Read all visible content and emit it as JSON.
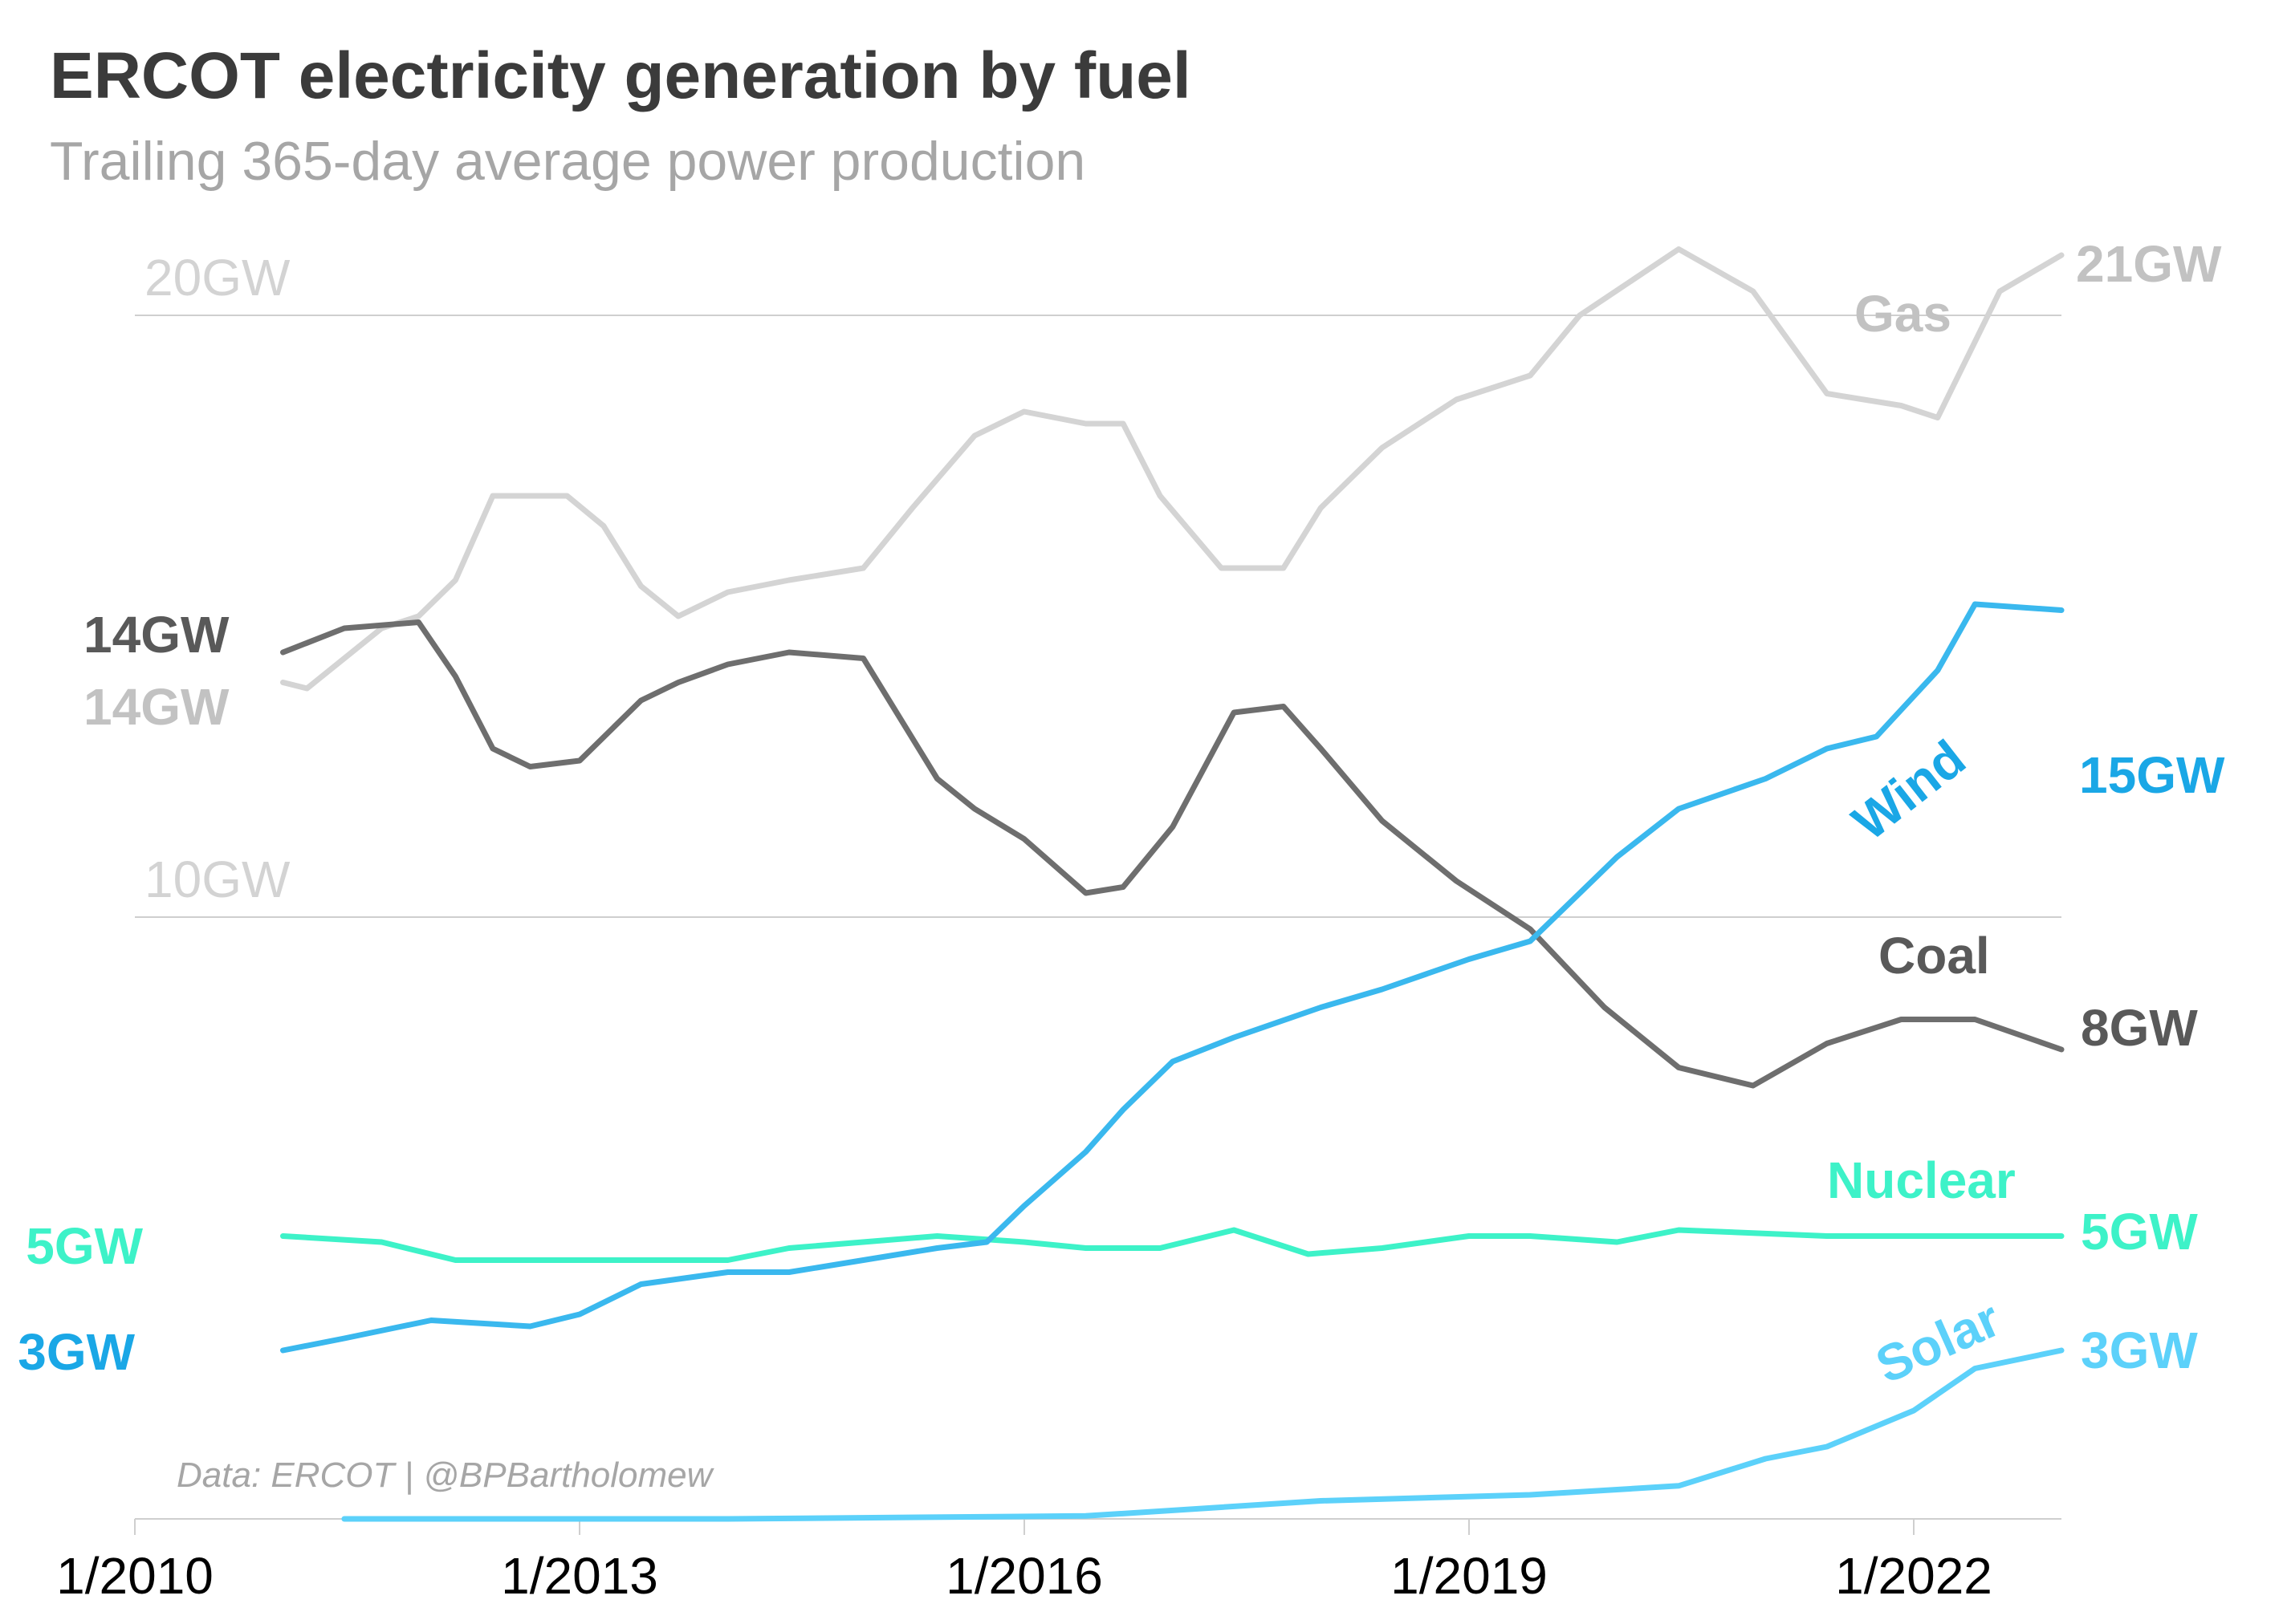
{
  "chart_data": {
    "type": "line",
    "title": "ERCOT electricity generation by fuel",
    "subtitle": "Trailing 365-day average power production",
    "source": "Data: ERCOT | @BPBartholomew",
    "x_axis": {
      "ticks": [
        "2010-01-01",
        "2013-01-01",
        "2016-01-01",
        "2019-01-01",
        "2022-01-01"
      ],
      "tick_labels": [
        "1/2010",
        "1/2013",
        "1/2016",
        "1/2019",
        "1/2022"
      ],
      "range": [
        "2010-01-01",
        "2022-12-31"
      ]
    },
    "y_axis": {
      "unit": "GW",
      "range": [
        0,
        22
      ],
      "gridlines": [
        10,
        20
      ],
      "gridline_labels": [
        "10GW",
        "20GW"
      ]
    },
    "grid": true,
    "series": [
      {
        "name": "Gas",
        "color": "#d4d4d4",
        "start_label": "14GW",
        "end_label": "21GW",
        "points": [
          [
            "2011-01-01",
            13.9
          ],
          [
            "2011-03-01",
            13.8
          ],
          [
            "2011-06-01",
            14.3
          ],
          [
            "2011-09-01",
            14.8
          ],
          [
            "2011-12-01",
            15.0
          ],
          [
            "2012-03-01",
            15.6
          ],
          [
            "2012-06-01",
            17.0
          ],
          [
            "2012-09-01",
            17.0
          ],
          [
            "2012-12-01",
            17.0
          ],
          [
            "2013-03-01",
            16.5
          ],
          [
            "2013-06-01",
            15.5
          ],
          [
            "2013-09-01",
            15.0
          ],
          [
            "2014-01-01",
            15.4
          ],
          [
            "2014-06-01",
            15.6
          ],
          [
            "2014-12-01",
            15.8
          ],
          [
            "2015-04-01",
            16.8
          ],
          [
            "2015-09-01",
            18.0
          ],
          [
            "2016-01-01",
            18.4
          ],
          [
            "2016-06-01",
            18.2
          ],
          [
            "2016-09-01",
            18.2
          ],
          [
            "2016-12-01",
            17.0
          ],
          [
            "2017-05-01",
            15.8
          ],
          [
            "2017-10-01",
            15.8
          ],
          [
            "2018-01-01",
            16.8
          ],
          [
            "2018-06-01",
            17.8
          ],
          [
            "2018-12-01",
            18.6
          ],
          [
            "2019-06-01",
            19.0
          ],
          [
            "2019-10-01",
            20.0
          ],
          [
            "2020-06-01",
            21.1
          ],
          [
            "2020-12-01",
            20.4
          ],
          [
            "2021-06-01",
            18.7
          ],
          [
            "2021-12-01",
            18.5
          ],
          [
            "2022-03-01",
            18.3
          ],
          [
            "2022-08-01",
            20.4
          ],
          [
            "2022-12-31",
            21.0
          ]
        ]
      },
      {
        "name": "Coal",
        "color": "#6e6e6e",
        "start_label": "14GW",
        "end_label": "8GW",
        "points": [
          [
            "2011-01-01",
            14.4
          ],
          [
            "2011-06-01",
            14.8
          ],
          [
            "2011-12-01",
            14.9
          ],
          [
            "2012-03-01",
            14.0
          ],
          [
            "2012-06-01",
            12.8
          ],
          [
            "2012-09-01",
            12.5
          ],
          [
            "2013-01-01",
            12.6
          ],
          [
            "2013-06-01",
            13.6
          ],
          [
            "2013-09-01",
            13.9
          ],
          [
            "2014-01-01",
            14.2
          ],
          [
            "2014-06-01",
            14.4
          ],
          [
            "2014-12-01",
            14.3
          ],
          [
            "2015-06-01",
            12.3
          ],
          [
            "2015-09-01",
            11.8
          ],
          [
            "2016-01-01",
            11.3
          ],
          [
            "2016-06-01",
            10.4
          ],
          [
            "2016-09-01",
            10.5
          ],
          [
            "2017-01-01",
            11.5
          ],
          [
            "2017-06-01",
            13.4
          ],
          [
            "2017-10-01",
            13.5
          ],
          [
            "2018-01-01",
            12.8
          ],
          [
            "2018-06-01",
            11.6
          ],
          [
            "2018-12-01",
            10.6
          ],
          [
            "2019-06-01",
            9.8
          ],
          [
            "2019-12-01",
            8.5
          ],
          [
            "2020-06-01",
            7.5
          ],
          [
            "2020-12-01",
            7.2
          ],
          [
            "2021-06-01",
            7.9
          ],
          [
            "2021-12-01",
            8.3
          ],
          [
            "2022-06-01",
            8.3
          ],
          [
            "2022-12-31",
            7.8
          ]
        ]
      },
      {
        "name": "Wind",
        "color": "#3ab8ee",
        "start_label": "3GW",
        "end_label": "15GW",
        "points": [
          [
            "2011-01-01",
            2.8
          ],
          [
            "2011-06-01",
            3.0
          ],
          [
            "2012-01-01",
            3.3
          ],
          [
            "2012-09-01",
            3.2
          ],
          [
            "2013-01-01",
            3.4
          ],
          [
            "2013-06-01",
            3.9
          ],
          [
            "2014-01-01",
            4.1
          ],
          [
            "2014-06-01",
            4.1
          ],
          [
            "2014-12-01",
            4.3
          ],
          [
            "2015-06-01",
            4.5
          ],
          [
            "2015-10-01",
            4.6
          ],
          [
            "2016-01-01",
            5.2
          ],
          [
            "2016-06-01",
            6.1
          ],
          [
            "2016-09-01",
            6.8
          ],
          [
            "2017-01-01",
            7.6
          ],
          [
            "2017-06-01",
            8.0
          ],
          [
            "2018-01-01",
            8.5
          ],
          [
            "2018-06-01",
            8.8
          ],
          [
            "2019-01-01",
            9.3
          ],
          [
            "2019-06-01",
            9.6
          ],
          [
            "2020-01-01",
            11.0
          ],
          [
            "2020-06-01",
            11.8
          ],
          [
            "2021-01-01",
            12.3
          ],
          [
            "2021-06-01",
            12.8
          ],
          [
            "2021-10-01",
            13.0
          ],
          [
            "2022-03-01",
            14.1
          ],
          [
            "2022-06-01",
            15.2
          ],
          [
            "2022-12-31",
            15.1
          ]
        ]
      },
      {
        "name": "Nuclear",
        "color": "#3df2c8",
        "start_label": "5GW",
        "end_label": "5GW",
        "points": [
          [
            "2011-01-01",
            4.7
          ],
          [
            "2011-09-01",
            4.6
          ],
          [
            "2012-03-01",
            4.3
          ],
          [
            "2012-06-01",
            4.3
          ],
          [
            "2013-06-01",
            4.3
          ],
          [
            "2014-01-01",
            4.3
          ],
          [
            "2014-06-01",
            4.5
          ],
          [
            "2015-06-01",
            4.7
          ],
          [
            "2016-01-01",
            4.6
          ],
          [
            "2016-06-01",
            4.5
          ],
          [
            "2016-12-01",
            4.5
          ],
          [
            "2017-06-01",
            4.8
          ],
          [
            "2017-12-01",
            4.4
          ],
          [
            "2018-06-01",
            4.5
          ],
          [
            "2019-01-01",
            4.7
          ],
          [
            "2019-06-01",
            4.7
          ],
          [
            "2020-01-01",
            4.6
          ],
          [
            "2020-06-01",
            4.8
          ],
          [
            "2021-06-01",
            4.7
          ],
          [
            "2022-01-01",
            4.7
          ],
          [
            "2022-12-31",
            4.7
          ]
        ]
      },
      {
        "name": "Solar",
        "color": "#5cd1fa",
        "start_label": "",
        "end_label": "3GW",
        "points": [
          [
            "2011-06-01",
            0.0
          ],
          [
            "2014-01-01",
            0.0
          ],
          [
            "2016-06-01",
            0.05
          ],
          [
            "2018-01-01",
            0.3
          ],
          [
            "2019-06-01",
            0.4
          ],
          [
            "2020-06-01",
            0.55
          ],
          [
            "2021-01-01",
            1.0
          ],
          [
            "2021-06-01",
            1.2
          ],
          [
            "2022-01-01",
            1.8
          ],
          [
            "2022-06-01",
            2.5
          ],
          [
            "2022-12-31",
            2.8
          ]
        ]
      }
    ]
  },
  "colors": {
    "title": "#3b3b3b",
    "subtitle": "#a6a6a6",
    "grid": "#cfcfcf",
    "grid_label": "#d3d3d3",
    "axis": "#cfcfcf",
    "tick_label": "#000000",
    "gas_label": "#c2c2c2",
    "coal_label": "#595959",
    "wind_label": "#1aa7e6",
    "nuclear_label": "#3df2c8",
    "solar_label": "#5cd1fa"
  }
}
